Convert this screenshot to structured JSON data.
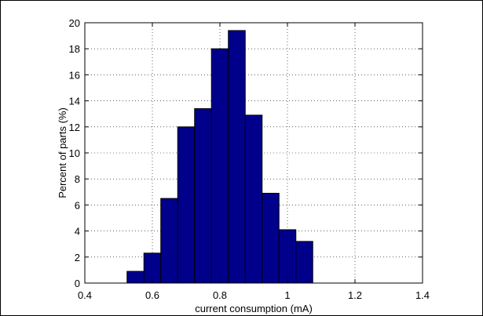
{
  "chart_data": {
    "type": "bar",
    "title": "",
    "xlabel": "current consumption (mA)",
    "ylabel": "Percent of parts (%)",
    "xlim": [
      0.4,
      1.4
    ],
    "ylim": [
      0,
      20
    ],
    "xticks": [
      "0.4",
      "0.6",
      "0.8",
      "1",
      "1.2",
      "1.4"
    ],
    "yticks": [
      "0",
      "2",
      "4",
      "6",
      "8",
      "10",
      "12",
      "14",
      "16",
      "18",
      "20"
    ],
    "grid": true,
    "bin_edges": [
      0.525,
      0.575,
      0.625,
      0.675,
      0.725,
      0.775,
      0.825,
      0.875,
      0.925,
      0.975,
      1.025,
      1.075,
      1.125,
      1.175
    ],
    "values": [
      0.9,
      2.3,
      6.5,
      12.0,
      13.4,
      18.0,
      19.4,
      12.9,
      6.9,
      4.1,
      3.2,
      0,
      0
    ],
    "bar_color": "#00008b",
    "legend": null
  }
}
